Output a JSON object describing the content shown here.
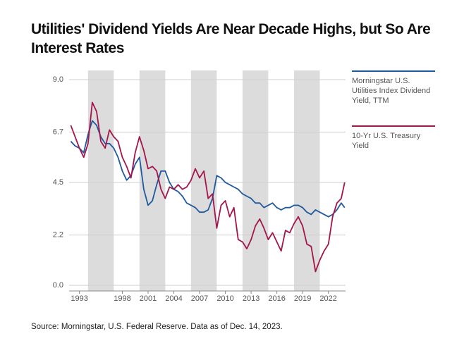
{
  "chart_data": {
    "type": "line",
    "title": "Utilities' Dividend Yields Are Near Decade Highs, but So Are Interest Rates",
    "source": "Source: Morningstar, U.S. Federal Reserve. Data as of Dec. 14, 2023.",
    "x": [
      1992,
      1992.5,
      1993,
      1993.5,
      1994,
      1994.5,
      1995,
      1995.5,
      1996,
      1996.5,
      1997,
      1997.5,
      1998,
      1998.5,
      1999,
      1999.5,
      2000,
      2000.5,
      2001,
      2001.5,
      2002,
      2002.5,
      2003,
      2003.5,
      2004,
      2004.5,
      2005,
      2005.5,
      2006,
      2006.5,
      2007,
      2007.5,
      2008,
      2008.5,
      2009,
      2009.5,
      2010,
      2010.5,
      2011,
      2011.5,
      2012,
      2012.5,
      2013,
      2013.5,
      2014,
      2014.5,
      2015,
      2015.5,
      2016,
      2016.5,
      2017,
      2017.5,
      2018,
      2018.5,
      2019,
      2019.5,
      2020,
      2020.5,
      2021,
      2021.5,
      2022,
      2022.5,
      2023,
      2023.5,
      2023.9
    ],
    "series": [
      {
        "name": "Morningstar U.S. Utilities Index Dividend Yield, TTM",
        "color": "#1f5a9e",
        "values": [
          6.3,
          6.1,
          6.0,
          5.8,
          6.6,
          7.2,
          7.0,
          6.5,
          6.2,
          6.2,
          6.0,
          5.6,
          5.0,
          4.6,
          4.8,
          5.3,
          5.6,
          4.2,
          3.5,
          3.7,
          4.4,
          5.0,
          5.0,
          4.5,
          4.2,
          4.1,
          3.9,
          3.6,
          3.5,
          3.4,
          3.2,
          3.2,
          3.3,
          3.8,
          4.8,
          4.7,
          4.5,
          4.4,
          4.3,
          4.2,
          4.0,
          3.9,
          3.8,
          3.6,
          3.6,
          3.4,
          3.5,
          3.6,
          3.4,
          3.3,
          3.4,
          3.4,
          3.5,
          3.5,
          3.4,
          3.2,
          3.1,
          3.3,
          3.2,
          3.1,
          3.0,
          3.1,
          3.3,
          3.6,
          3.4
        ]
      },
      {
        "name": "10-Yr U.S. Treasury Yield",
        "color": "#a3154b",
        "values": [
          7.0,
          6.5,
          6.0,
          5.6,
          6.2,
          8.0,
          7.6,
          6.3,
          6.0,
          6.8,
          6.5,
          6.3,
          5.6,
          5.2,
          4.7,
          5.8,
          6.5,
          5.9,
          5.1,
          5.2,
          5.0,
          4.2,
          3.8,
          4.3,
          4.2,
          4.4,
          4.2,
          4.3,
          4.6,
          5.1,
          4.7,
          5.0,
          3.8,
          4.0,
          2.5,
          3.5,
          3.7,
          3.0,
          3.4,
          2.0,
          1.9,
          1.6,
          2.0,
          2.6,
          2.9,
          2.5,
          2.0,
          2.3,
          1.9,
          1.5,
          2.4,
          2.3,
          2.7,
          3.0,
          2.6,
          1.8,
          1.7,
          0.6,
          1.1,
          1.5,
          1.8,
          3.0,
          3.6,
          3.8,
          4.5
        ]
      }
    ],
    "shaded_spans": [
      [
        1994,
        1997
      ],
      [
        2000,
        2003
      ],
      [
        2006,
        2009
      ],
      [
        2012,
        2015
      ],
      [
        2018,
        2021
      ]
    ],
    "xlim": [
      1991.8,
      2024
    ],
    "xticks": [
      1993,
      1998,
      2001,
      2004,
      2007,
      2010,
      2013,
      2016,
      2019,
      2022
    ],
    "ylim": [
      0,
      9
    ],
    "yticks": [
      {
        "value": 0,
        "label": "0.0"
      },
      2.2,
      4.5,
      6.7,
      {
        "value": 9,
        "label": "9.0"
      }
    ],
    "grid": true
  }
}
